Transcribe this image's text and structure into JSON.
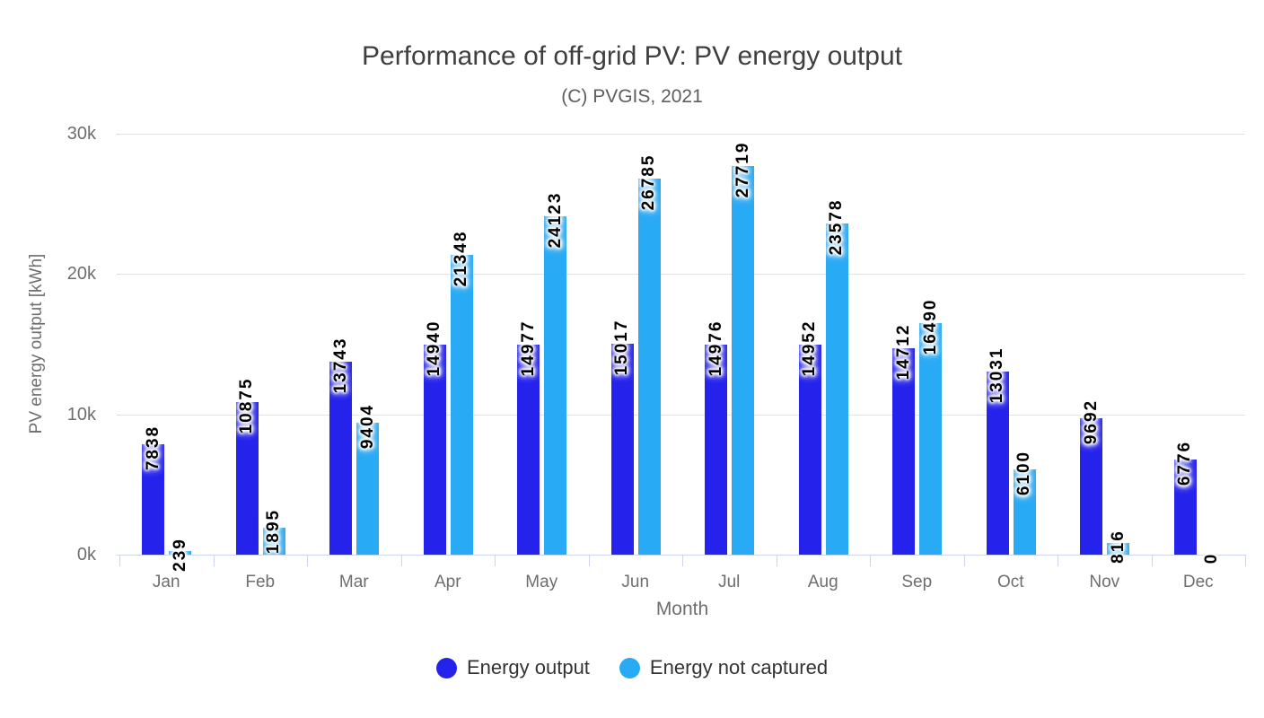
{
  "chart_data": {
    "type": "bar",
    "title": "Performance of off-grid PV: PV energy output",
    "subtitle": "(C) PVGIS, 2021",
    "xlabel": "Month",
    "ylabel": "PV energy output [kWh]",
    "ylim": [
      0,
      30000
    ],
    "grid": true,
    "legend_position": "bottom",
    "yticks": [
      {
        "value": 0,
        "label": "0k"
      },
      {
        "value": 10000,
        "label": "10k"
      },
      {
        "value": 20000,
        "label": "20k"
      },
      {
        "value": 30000,
        "label": "30k"
      }
    ],
    "categories": [
      "Jan",
      "Feb",
      "Mar",
      "Apr",
      "May",
      "Jun",
      "Jul",
      "Aug",
      "Sep",
      "Oct",
      "Nov",
      "Dec"
    ],
    "series": [
      {
        "name": "Energy output",
        "color": "#2523eb",
        "values": [
          7838,
          10875,
          13743,
          14940,
          14977,
          15017,
          14976,
          14952,
          14712,
          13031,
          9692,
          6776
        ]
      },
      {
        "name": "Energy not captured",
        "color": "#29aaf4",
        "values": [
          239,
          1895,
          9404,
          21348,
          24123,
          26785,
          27719,
          23578,
          16490,
          6100,
          816,
          0
        ]
      }
    ]
  },
  "colors": {
    "grid": "#e1e1e1",
    "axis": "#ccd6eb",
    "title_text": "#3f3f3f",
    "muted_text": "#6e6e6e",
    "legend_text": "#333333",
    "bar_label_text": "#000000"
  }
}
